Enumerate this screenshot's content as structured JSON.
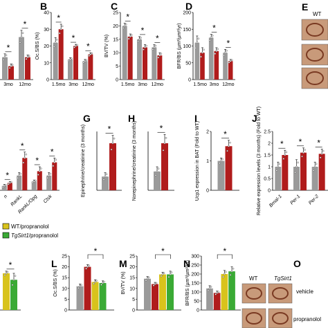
{
  "colors": {
    "wt": "#9a9a9a",
    "tg": "#b01c1c",
    "wt_prop": "#d8c31c",
    "tg_prop": "#3aaa35",
    "photo_bg": "#c89a7a",
    "photo_tissue": "#7a3a22"
  },
  "chart_data": [
    {
      "id": "A",
      "type": "bar",
      "label": "",
      "ylabel": "",
      "ylim": [
        0,
        3
      ],
      "yticks": [],
      "categories": [
        "3mo",
        "12mo"
      ],
      "series": [
        {
          "color": "wt",
          "values": [
            1.0,
            1.9
          ],
          "err": [
            0.15,
            0.3
          ]
        },
        {
          "color": "tg",
          "values": [
            0.6,
            1.0
          ],
          "err": [
            0.1,
            0.1
          ]
        }
      ],
      "stars": [
        0,
        1
      ]
    },
    {
      "id": "B",
      "type": "bar",
      "label": "B",
      "ylabel": "Oc.S/BS (%)",
      "ylim": [
        0,
        40
      ],
      "yticks": [
        0,
        10,
        20,
        30,
        40
      ],
      "categories": [
        "1.5mo",
        "3mo",
        "12mo"
      ],
      "series": [
        {
          "color": "wt",
          "values": [
            22,
            12,
            11
          ],
          "err": [
            3,
            1,
            1
          ]
        },
        {
          "color": "tg",
          "values": [
            30,
            20,
            15
          ],
          "err": [
            3,
            1,
            1
          ]
        }
      ],
      "stars": [
        0,
        1,
        2
      ]
    },
    {
      "id": "C",
      "type": "bar",
      "label": "C",
      "ylabel": "BV/TV (%)",
      "ylim": [
        0,
        25
      ],
      "yticks": [
        0,
        5,
        10,
        15,
        20,
        25
      ],
      "categories": [
        "1.5mo",
        "3mo",
        "12mo"
      ],
      "series": [
        {
          "color": "wt",
          "values": [
            20,
            15,
            12
          ],
          "err": [
            1,
            1,
            1
          ]
        },
        {
          "color": "tg",
          "values": [
            16,
            12,
            9
          ],
          "err": [
            1,
            1,
            1
          ]
        }
      ],
      "stars": [
        0,
        1,
        2
      ]
    },
    {
      "id": "D",
      "type": "bar",
      "label": "D",
      "ylabel": "BFR/BS (µm³/µm²/yr)",
      "ylim": [
        0,
        200
      ],
      "yticks": [
        0,
        50,
        100,
        150,
        200
      ],
      "categories": [
        "1.5mo",
        "3mo",
        "12mo"
      ],
      "series": [
        {
          "color": "wt",
          "values": [
            110,
            125,
            80
          ],
          "err": [
            20,
            10,
            10
          ]
        },
        {
          "color": "tg",
          "values": [
            80,
            85,
            55
          ],
          "err": [
            15,
            10,
            5
          ]
        }
      ],
      "stars": [
        1,
        2
      ]
    },
    {
      "id": "F",
      "type": "bar",
      "label": "",
      "ylabel": "",
      "ylim": [
        0,
        4
      ],
      "yticks": [],
      "categories": [
        "n",
        "RankL",
        "RankL/Opg",
        "Ctsk"
      ],
      "italic": true,
      "series": [
        {
          "color": "wt",
          "values": [
            0.3,
            1.0,
            0.6,
            1.0
          ],
          "err": [
            0.1,
            0.2,
            0.1,
            0.2
          ]
        },
        {
          "color": "tg",
          "values": [
            0.5,
            2.2,
            1.3,
            1.9
          ],
          "err": [
            0.1,
            0.4,
            0.3,
            0.3
          ]
        }
      ],
      "stars": [
        0,
        1,
        2,
        3
      ]
    },
    {
      "id": "G",
      "type": "bar",
      "label": "G",
      "ylabel": "Epinephrine/creatinine (3 months)",
      "ylim": [
        0,
        150
      ],
      "yticks": [],
      "categories": [
        ""
      ],
      "series": [
        {
          "color": "wt",
          "values": [
            35
          ],
          "err": [
            10
          ]
        },
        {
          "color": "tg",
          "values": [
            120
          ],
          "err": [
            20
          ]
        }
      ],
      "stars": [
        0
      ]
    },
    {
      "id": "H",
      "type": "bar",
      "label": "H",
      "ylabel": "Norepinephrine/creatinine (3 months)",
      "ylim": [
        0,
        1000
      ],
      "yticks": [],
      "categories": [
        ""
      ],
      "series": [
        {
          "color": "wt",
          "values": [
            320
          ],
          "err": [
            80
          ]
        },
        {
          "color": "tg",
          "values": [
            800
          ],
          "err": [
            150
          ]
        }
      ],
      "stars": [
        0
      ]
    },
    {
      "id": "I",
      "type": "bar",
      "label": "I",
      "ylabel": "Ucp1 expression in BAT (Fold to WT)",
      "ylim": [
        0,
        2
      ],
      "yticks": [
        0,
        1,
        2
      ],
      "categories": [
        ""
      ],
      "series": [
        {
          "color": "wt",
          "values": [
            1.0
          ],
          "err": [
            0.1
          ]
        },
        {
          "color": "tg",
          "values": [
            1.5
          ],
          "err": [
            0.2
          ]
        }
      ],
      "stars": [
        0
      ]
    },
    {
      "id": "J",
      "type": "bar",
      "label": "J",
      "ylabel": "Relative expression levels (3 months) (Fold to WT)",
      "ylim": [
        0,
        2.5
      ],
      "yticks": [
        0,
        0.5,
        1.0,
        1.5,
        2.0,
        2.5
      ],
      "categories": [
        "Bmal-1",
        "Per-1",
        "Per-2"
      ],
      "italic": true,
      "series": [
        {
          "color": "wt",
          "values": [
            1.0,
            1.0,
            1.0
          ],
          "err": [
            0.2,
            0.3,
            0.2
          ]
        },
        {
          "color": "tg",
          "values": [
            1.5,
            1.6,
            1.55
          ],
          "err": [
            0.2,
            0.2,
            0.2
          ]
        }
      ],
      "stars": [
        0,
        1,
        2
      ]
    },
    {
      "id": "K",
      "type": "bar",
      "label": "",
      "ylabel": "",
      "ylim": [
        0,
        2.5
      ],
      "yticks": [],
      "categories": [
        ""
      ],
      "series": [
        {
          "color": "wt_prop",
          "values": [
            1.7
          ],
          "err": [
            0.1
          ]
        },
        {
          "color": "tg_prop",
          "values": [
            1.4
          ],
          "err": [
            0.3
          ]
        }
      ],
      "stars": [
        0
      ]
    },
    {
      "id": "L",
      "type": "bar",
      "label": "L",
      "ylabel": "Oc.S/BS (%)",
      "ylim": [
        0,
        25
      ],
      "yticks": [
        0,
        5,
        10,
        15,
        20,
        25
      ],
      "categories": [
        ""
      ],
      "series": [
        {
          "color": "wt",
          "values": [
            11
          ],
          "err": [
            1
          ]
        },
        {
          "color": "tg",
          "values": [
            20
          ],
          "err": [
            1
          ]
        },
        {
          "color": "wt_prop",
          "values": [
            13
          ],
          "err": [
            1
          ]
        },
        {
          "color": "tg_prop",
          "values": [
            12.5
          ],
          "err": [
            1
          ]
        }
      ],
      "bracket": [
        1,
        3
      ]
    },
    {
      "id": "M",
      "type": "bar",
      "label": "M",
      "ylabel": "BV/TV (%)",
      "ylim": [
        0,
        25
      ],
      "yticks": [
        0,
        5,
        10,
        15,
        20,
        25
      ],
      "categories": [
        ""
      ],
      "series": [
        {
          "color": "wt",
          "values": [
            14.5
          ],
          "err": [
            1
          ]
        },
        {
          "color": "tg",
          "values": [
            12
          ],
          "err": [
            0.8
          ]
        },
        {
          "color": "wt_prop",
          "values": [
            16.5
          ],
          "err": [
            1
          ]
        },
        {
          "color": "tg_prop",
          "values": [
            16.5
          ],
          "err": [
            1.5
          ]
        }
      ],
      "bracket": [
        1,
        3
      ]
    },
    {
      "id": "N",
      "type": "bar",
      "label": "N",
      "ylabel": "BFR/BS (µm³/µm²/yr)",
      "ylim": [
        0,
        300
      ],
      "yticks": [
        0,
        50,
        100,
        150,
        200,
        250,
        300
      ],
      "categories": [
        ""
      ],
      "series": [
        {
          "color": "wt",
          "values": [
            120
          ],
          "err": [
            15
          ]
        },
        {
          "color": "tg",
          "values": [
            95
          ],
          "err": [
            10
          ]
        },
        {
          "color": "wt_prop",
          "values": [
            200
          ],
          "err": [
            20
          ]
        },
        {
          "color": "tg_prop",
          "values": [
            215
          ],
          "err": [
            25
          ]
        }
      ],
      "bracket": [
        1,
        3
      ]
    }
  ],
  "legend": [
    {
      "label": "WT/propranolol",
      "color": "wt_prop"
    },
    {
      "label": "TgSirt1/propranolol",
      "color": "tg_prop"
    }
  ],
  "photos": {
    "E": {
      "label": "E",
      "header": "WT"
    },
    "O": {
      "label": "O",
      "col1": "WT",
      "col2": "TgSirt1",
      "row1": "vehicle",
      "row2": "propranolol"
    }
  }
}
